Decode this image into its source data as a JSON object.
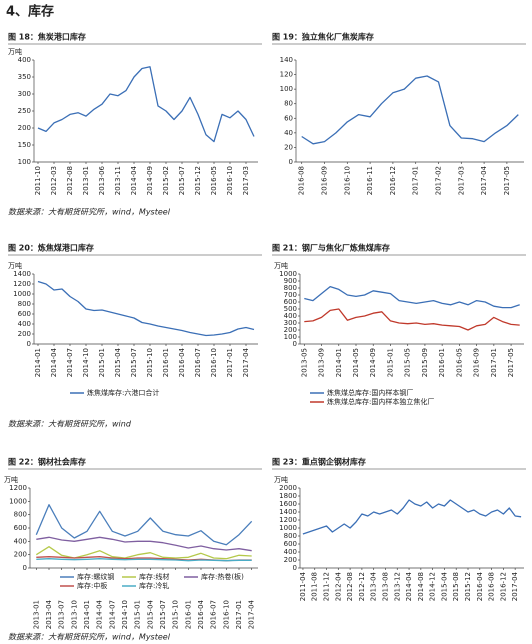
{
  "page_title": "4、库存",
  "sources": [
    "数据来源：大有期货研究所，wind，Mysteel",
    "数据来源：大有期货研究所，wind",
    "数据来源：大有期货研究所，wind，Mysteel"
  ],
  "chart_data": [
    {
      "type": "line",
      "title": "图 18：焦炭港口库存",
      "unit": "万吨",
      "color": "#3b6fb6",
      "categories": [
        "2011-10",
        null,
        "2012-03",
        null,
        "2012-08",
        null,
        "2013-01",
        null,
        "2013-06",
        null,
        "2013-11",
        null,
        "2014-04",
        null,
        "2014-09",
        null,
        "2015-02",
        null,
        "2015-07",
        null,
        "2015-12",
        null,
        "2016-05",
        null,
        "2016-10",
        null,
        "2017-03",
        null
      ],
      "values": [
        200,
        190,
        215,
        225,
        240,
        245,
        235,
        255,
        270,
        300,
        295,
        310,
        350,
        375,
        380,
        265,
        250,
        225,
        250,
        290,
        240,
        180,
        160,
        240,
        230,
        250,
        225,
        175
      ],
      "ylim": [
        100,
        400
      ],
      "yticks": [
        100,
        150,
        200,
        250,
        300,
        350,
        400
      ]
    },
    {
      "type": "line",
      "title": "图 19：独立焦化厂焦炭库存",
      "color": "#3b6fb6",
      "categories": [
        "2016-08",
        null,
        "2016-09",
        null,
        "2016-10",
        null,
        "2016-11",
        null,
        "2016-12",
        null,
        "2017-01",
        null,
        "2017-02",
        null,
        "2017-03",
        null,
        "2017-04",
        null,
        "2017-05",
        null
      ],
      "values": [
        35,
        25,
        28,
        40,
        55,
        65,
        62,
        80,
        95,
        100,
        115,
        118,
        110,
        50,
        33,
        32,
        28,
        40,
        50,
        65
      ],
      "ylim": [
        0,
        140
      ],
      "yticks": [
        0,
        20,
        40,
        60,
        80,
        100,
        120,
        140
      ]
    },
    {
      "type": "line",
      "title": "图 20：炼焦煤港口库存",
      "unit": "万吨",
      "categories": [
        "2014-01",
        null,
        "2014-04",
        null,
        "2014-07",
        null,
        "2014-10",
        null,
        "2015-01",
        null,
        "2015-04",
        null,
        "2015-07",
        null,
        "2015-10",
        null,
        "2016-01",
        null,
        "2016-04",
        null,
        "2016-07",
        null,
        "2016-10",
        null,
        "2017-01",
        null,
        "2017-04",
        null
      ],
      "series": [
        {
          "name": "炼焦煤库存:六港口合计",
          "color": "#3b6fb6",
          "values": [
            1250,
            1200,
            1080,
            1100,
            950,
            850,
            700,
            670,
            680,
            640,
            600,
            560,
            520,
            430,
            400,
            360,
            330,
            300,
            270,
            230,
            200,
            170,
            180,
            200,
            230,
            300,
            330,
            290
          ]
        }
      ],
      "ylim": [
        0,
        1400
      ],
      "yticks": [
        0,
        200,
        400,
        600,
        800,
        1000,
        1200,
        1400
      ]
    },
    {
      "type": "line",
      "title": "图 21：钢厂与焦化厂炼焦煤库存",
      "unit": "万吨",
      "categories": [
        "2013-05",
        null,
        "2013-09",
        null,
        "2014-01",
        null,
        "2014-05",
        null,
        "2014-09",
        null,
        "2015-01",
        null,
        "2015-05",
        null,
        "2015-09",
        null,
        "2016-01",
        null,
        "2016-05",
        null,
        "2016-09",
        null,
        "2017-01",
        null,
        "2017-05",
        null
      ],
      "series": [
        {
          "name": "炼焦煤总库存:国内样本钢厂",
          "color": "#3b6fb6",
          "values": [
            650,
            620,
            720,
            820,
            780,
            700,
            680,
            700,
            760,
            740,
            720,
            620,
            600,
            580,
            600,
            620,
            580,
            560,
            600,
            560,
            620,
            600,
            540,
            520,
            520,
            560
          ]
        },
        {
          "name": "炼焦煤总库存:国内样本独立焦化厂",
          "color": "#c0392b",
          "values": [
            320,
            330,
            380,
            480,
            500,
            340,
            380,
            400,
            440,
            460,
            330,
            300,
            290,
            300,
            280,
            290,
            270,
            260,
            250,
            200,
            260,
            280,
            380,
            320,
            280,
            270
          ]
        }
      ],
      "ylim": [
        0,
        1000
      ],
      "yticks": [
        0,
        100,
        200,
        300,
        400,
        500,
        600,
        700,
        800,
        900,
        1000
      ]
    },
    {
      "type": "line",
      "title": "图 22：钢材社会库存",
      "unit": "万吨",
      "categories": [
        "2013-01",
        "2013-04",
        "2013-07",
        "2013-10",
        "2014-01",
        "2014-04",
        "2014-07",
        "2014-10",
        "2015-01",
        "2015-04",
        "2015-07",
        "2015-10",
        "2016-01",
        "2016-04",
        "2016-07",
        "2016-10",
        "2017-01",
        "2017-04"
      ],
      "series": [
        {
          "name": "库存:螺纹钢",
          "color": "#4a7ebb",
          "values": [
            500,
            950,
            600,
            450,
            550,
            850,
            550,
            480,
            550,
            750,
            550,
            500,
            480,
            560,
            400,
            350,
            500,
            700
          ]
        },
        {
          "name": "库存:线材",
          "color": "#b5c94a",
          "values": [
            200,
            320,
            190,
            150,
            200,
            260,
            170,
            150,
            200,
            230,
            160,
            150,
            160,
            220,
            150,
            140,
            190,
            180
          ]
        },
        {
          "name": "库存:热卷(板)",
          "color": "#7f5fa0",
          "values": [
            430,
            460,
            420,
            400,
            430,
            460,
            430,
            390,
            400,
            400,
            380,
            340,
            300,
            330,
            290,
            270,
            290,
            260
          ]
        },
        {
          "name": "库存:中板",
          "color": "#c0504d",
          "values": [
            160,
            170,
            160,
            150,
            160,
            170,
            150,
            140,
            150,
            150,
            140,
            130,
            120,
            130,
            120,
            110,
            120,
            120
          ]
        },
        {
          "name": "库存:冷轧",
          "color": "#4bacc6",
          "values": [
            130,
            140,
            130,
            125,
            130,
            140,
            130,
            125,
            130,
            130,
            125,
            120,
            110,
            120,
            115,
            110,
            115,
            115
          ]
        }
      ],
      "ylim": [
        0,
        1200
      ],
      "yticks": [
        0,
        200,
        400,
        600,
        800,
        1000,
        1200
      ]
    },
    {
      "type": "line",
      "title": "图 23：重点钢企钢材库存",
      "unit": "万吨",
      "color": "#3b6fb6",
      "categories": [
        "2011-04",
        null,
        "2011-08",
        null,
        "2011-12",
        null,
        "2012-04",
        null,
        "2012-08",
        null,
        "2012-12",
        null,
        "2013-04",
        null,
        "2013-08",
        null,
        "2013-12",
        null,
        "2014-04",
        null,
        "2014-08",
        null,
        "2014-12",
        null,
        "2015-04",
        null,
        "2015-08",
        null,
        "2015-12",
        null,
        "2016-04",
        null,
        "2016-08",
        null,
        "2016-12",
        null,
        "2017-04",
        null
      ],
      "values": [
        850,
        900,
        950,
        1000,
        1050,
        900,
        1000,
        1100,
        1000,
        1150,
        1350,
        1300,
        1400,
        1350,
        1400,
        1450,
        1350,
        1500,
        1700,
        1600,
        1550,
        1650,
        1500,
        1600,
        1550,
        1700,
        1600,
        1500,
        1400,
        1450,
        1350,
        1300,
        1400,
        1450,
        1350,
        1500,
        1300,
        1280
      ],
      "ylim": [
        0,
        2000
      ],
      "yticks": [
        0,
        200,
        400,
        600,
        800,
        1000,
        1200,
        1400,
        1600,
        1800,
        2000
      ]
    }
  ]
}
